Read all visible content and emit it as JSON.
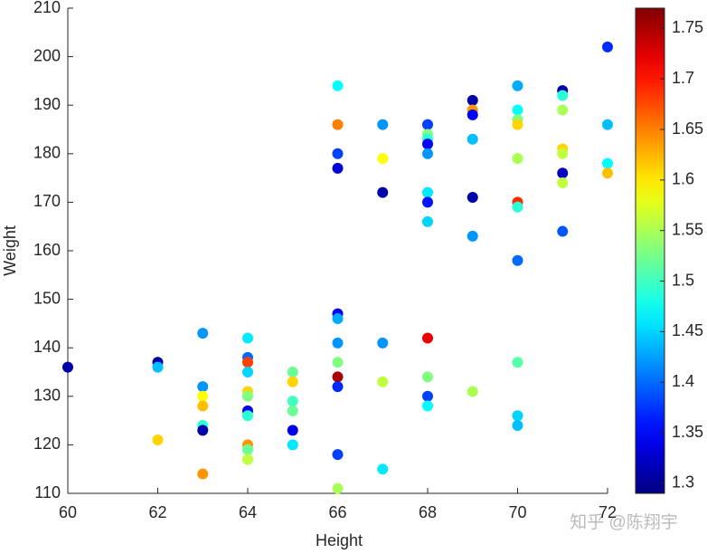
{
  "chart_data": {
    "type": "scatter",
    "x_label": "Height",
    "y_label": "Weight",
    "xlim": [
      60,
      72
    ],
    "xticks": [
      60,
      62,
      64,
      66,
      68,
      70,
      72
    ],
    "ylim": [
      110,
      210
    ],
    "yticks": [
      110,
      120,
      130,
      140,
      150,
      160,
      170,
      180,
      190,
      200,
      210
    ],
    "colormap": "jet",
    "clim": [
      1.29,
      1.77
    ],
    "cticks": [
      1.3,
      1.35,
      1.4,
      1.45,
      1.5,
      1.55,
      1.6,
      1.65,
      1.7,
      1.75
    ],
    "series": [
      {
        "x": [
          60,
          62,
          62,
          62,
          63,
          63,
          63,
          63,
          63,
          63,
          63,
          64,
          64,
          64,
          64,
          64,
          64,
          64,
          64,
          64,
          64,
          64,
          65,
          65,
          65,
          65,
          65,
          65,
          66,
          66,
          66,
          66,
          66,
          66,
          66,
          66,
          66,
          66,
          66,
          66,
          67,
          67,
          67,
          67,
          67,
          67,
          68,
          68,
          68,
          68,
          68,
          68,
          68,
          68,
          68,
          68,
          68,
          68,
          69,
          69,
          69,
          69,
          69,
          69,
          69,
          70,
          70,
          70,
          70,
          70,
          70,
          70,
          70,
          70,
          70,
          70,
          71,
          71,
          71,
          71,
          71,
          71,
          71,
          71,
          72,
          72,
          72,
          72
        ],
        "values": [
          136,
          137,
          136,
          121,
          143,
          132,
          130,
          128,
          124,
          123,
          114,
          142,
          138,
          137,
          135,
          131,
          130,
          127,
          126,
          120,
          119,
          117,
          135,
          133,
          129,
          127,
          123,
          120,
          194,
          186,
          180,
          177,
          147,
          146,
          141,
          137,
          134,
          132,
          118,
          111,
          186,
          179,
          172,
          141,
          133,
          115,
          186,
          184,
          183,
          182,
          180,
          172,
          170,
          166,
          142,
          134,
          130,
          128,
          191,
          189,
          188,
          183,
          171,
          163,
          131,
          194,
          189,
          187,
          186,
          179,
          170,
          169,
          158,
          137,
          126,
          124,
          193,
          192,
          189,
          181,
          180,
          176,
          174,
          164,
          202,
          186,
          178,
          176
        ],
        "color_values": [
          1.31,
          1.31,
          1.44,
          1.61,
          1.42,
          1.42,
          1.59,
          1.62,
          1.49,
          1.31,
          1.64,
          1.46,
          1.4,
          1.68,
          1.45,
          1.61,
          1.53,
          1.34,
          1.49,
          1.64,
          1.52,
          1.56,
          1.52,
          1.61,
          1.5,
          1.52,
          1.34,
          1.46,
          1.47,
          1.65,
          1.38,
          1.33,
          1.35,
          1.43,
          1.42,
          1.53,
          1.75,
          1.37,
          1.38,
          1.55,
          1.42,
          1.59,
          1.31,
          1.42,
          1.56,
          1.46,
          1.38,
          1.53,
          1.49,
          1.35,
          1.42,
          1.46,
          1.36,
          1.45,
          1.72,
          1.53,
          1.38,
          1.47,
          1.31,
          1.64,
          1.35,
          1.44,
          1.31,
          1.42,
          1.55,
          1.43,
          1.47,
          1.53,
          1.61,
          1.55,
          1.69,
          1.49,
          1.4,
          1.51,
          1.45,
          1.44,
          1.31,
          1.49,
          1.55,
          1.61,
          1.56,
          1.32,
          1.56,
          1.39,
          1.37,
          1.44,
          1.47,
          1.62
        ]
      }
    ]
  },
  "watermark": "知乎 @陈翔宇"
}
